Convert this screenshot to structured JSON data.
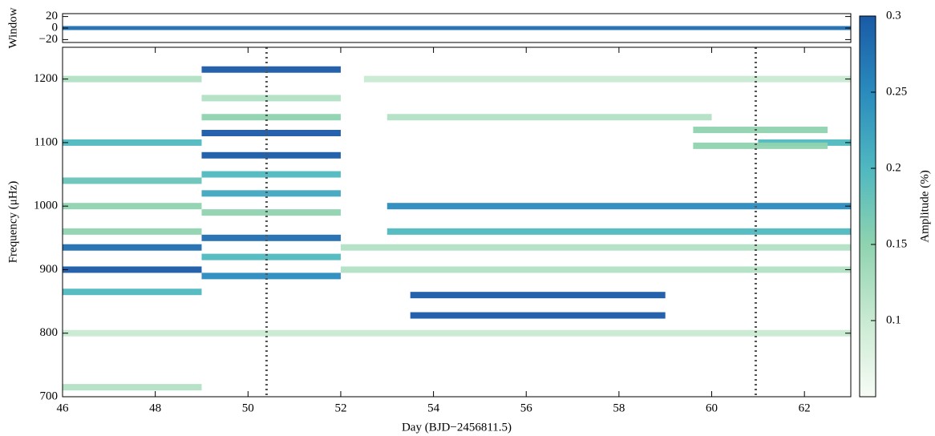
{
  "chart_data": [
    {
      "type": "spectrogram",
      "ylabel": "Window",
      "xlim": [
        46,
        63
      ],
      "ylim": [
        -25,
        25
      ],
      "yticks": [
        {
          "value": 20,
          "label": "20"
        },
        {
          "value": 0,
          "label": "0"
        },
        {
          "value": -20,
          "label": "−20"
        }
      ],
      "tracks": [
        {
          "x": [
            46,
            63
          ],
          "y": 0,
          "amplitude": 0.28
        }
      ]
    },
    {
      "type": "spectrogram",
      "xlabel": "Day (BJD−2456811.5)",
      "ylabel": "Frequency (μHz)",
      "xlim": [
        46,
        63
      ],
      "ylim": [
        700,
        1250
      ],
      "xticks": [
        46,
        48,
        50,
        52,
        54,
        56,
        58,
        60,
        62
      ],
      "yticks": [
        700,
        800,
        900,
        1000,
        1100,
        1200
      ],
      "vlines": [
        50.4,
        60.95
      ],
      "colormap": [
        "#f7fcf5",
        "#c9ead2",
        "#8fd3b0",
        "#4fb8c0",
        "#2a8bbe",
        "#1a5aa6"
      ],
      "colorbar": {
        "label": "Amplitude (%)",
        "lim": [
          0.05,
          0.3
        ],
        "ticks": [
          0.1,
          0.15,
          0.2,
          0.25,
          0.3
        ]
      },
      "tracks": [
        {
          "x": [
            46,
            49
          ],
          "y": 1200,
          "amplitude": 0.12
        },
        {
          "x": [
            52.5,
            63
          ],
          "y": 1200,
          "amplitude": 0.1
        },
        {
          "x": [
            46,
            49
          ],
          "y": 1100,
          "amplitude": 0.2
        },
        {
          "x": [
            61,
            63
          ],
          "y": 1100,
          "amplitude": 0.2
        },
        {
          "x": [
            46,
            49
          ],
          "y": 1040,
          "amplitude": 0.18
        },
        {
          "x": [
            46,
            49
          ],
          "y": 1000,
          "amplitude": 0.15
        },
        {
          "x": [
            53,
            63
          ],
          "y": 1000,
          "amplitude": 0.25
        },
        {
          "x": [
            46,
            49
          ],
          "y": 960,
          "amplitude": 0.15
        },
        {
          "x": [
            53,
            63
          ],
          "y": 960,
          "amplitude": 0.2
        },
        {
          "x": [
            46,
            49
          ],
          "y": 935,
          "amplitude": 0.28
        },
        {
          "x": [
            52,
            63
          ],
          "y": 935,
          "amplitude": 0.12
        },
        {
          "x": [
            46,
            49
          ],
          "y": 900,
          "amplitude": 0.3
        },
        {
          "x": [
            52,
            63
          ],
          "y": 900,
          "amplitude": 0.12
        },
        {
          "x": [
            46,
            49
          ],
          "y": 865,
          "amplitude": 0.2
        },
        {
          "x": [
            53.5,
            59
          ],
          "y": 860,
          "amplitude": 0.3
        },
        {
          "x": [
            53.5,
            59
          ],
          "y": 828,
          "amplitude": 0.3
        },
        {
          "x": [
            46,
            63
          ],
          "y": 800,
          "amplitude": 0.1
        },
        {
          "x": [
            46,
            49
          ],
          "y": 715,
          "amplitude": 0.12
        },
        {
          "x": [
            53,
            60
          ],
          "y": 1140,
          "amplitude": 0.12
        },
        {
          "x": [
            49,
            52
          ],
          "y": 1215,
          "amplitude": 0.3
        },
        {
          "x": [
            49,
            52
          ],
          "y": 1170,
          "amplitude": 0.12
        },
        {
          "x": [
            49,
            52
          ],
          "y": 1140,
          "amplitude": 0.15
        },
        {
          "x": [
            49,
            52
          ],
          "y": 1115,
          "amplitude": 0.3
        },
        {
          "x": [
            49,
            52
          ],
          "y": 1080,
          "amplitude": 0.3
        },
        {
          "x": [
            49,
            52
          ],
          "y": 1050,
          "amplitude": 0.2
        },
        {
          "x": [
            49,
            52
          ],
          "y": 1020,
          "amplitude": 0.22
        },
        {
          "x": [
            49,
            52
          ],
          "y": 990,
          "amplitude": 0.15
        },
        {
          "x": [
            49,
            52
          ],
          "y": 950,
          "amplitude": 0.28
        },
        {
          "x": [
            49,
            52
          ],
          "y": 920,
          "amplitude": 0.2
        },
        {
          "x": [
            49,
            52
          ],
          "y": 890,
          "amplitude": 0.25
        },
        {
          "x": [
            59.6,
            62.5
          ],
          "y": 1120,
          "amplitude": 0.15
        },
        {
          "x": [
            59.6,
            62.5
          ],
          "y": 1095,
          "amplitude": 0.15
        }
      ]
    }
  ]
}
